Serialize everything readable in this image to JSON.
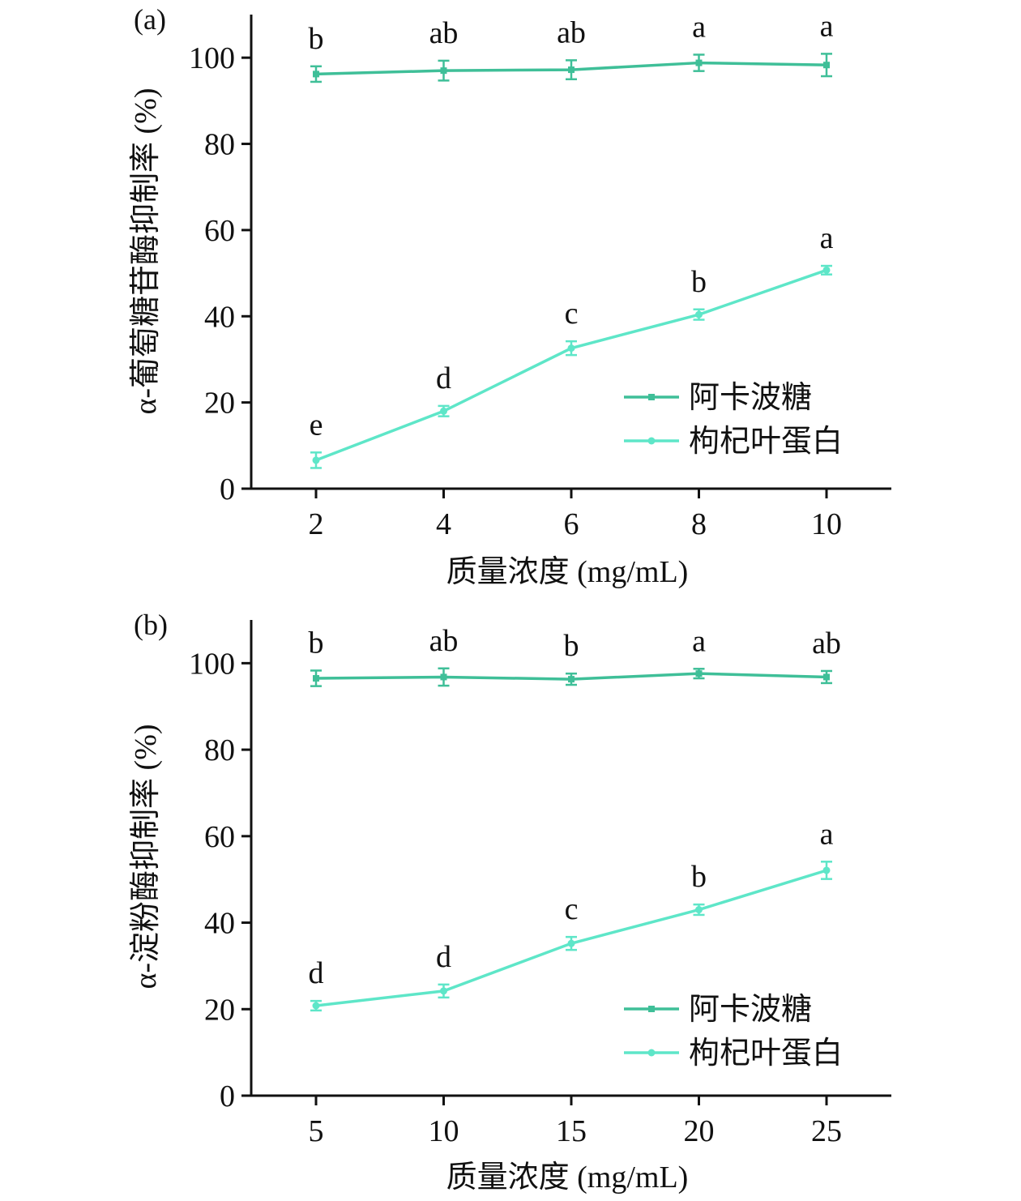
{
  "colors": {
    "acarbose": "#3fbf98",
    "protein": "#5ee6c8",
    "axis": "#111111"
  },
  "chart_data": [
    {
      "type": "line",
      "panel_label": "(a)",
      "xlabel": "质量浓度 (mg/mL)",
      "ylabel": "α-葡萄糖苷酶抑制率 (%)",
      "x": [
        2,
        4,
        6,
        8,
        10
      ],
      "x_ticks": [
        "2",
        "4",
        "6",
        "8",
        "10"
      ],
      "xlim": [
        1,
        11
      ],
      "ylim": [
        0,
        110
      ],
      "y_ticks": [
        "0",
        "20",
        "40",
        "60",
        "80",
        "100"
      ],
      "series": [
        {
          "name": "阿卡波糖",
          "marker": "square",
          "values": [
            96.2,
            97.0,
            97.2,
            98.8,
            98.3
          ],
          "errors": [
            1.8,
            2.3,
            2.2,
            1.9,
            2.6
          ],
          "labels": [
            "b",
            "ab",
            "ab",
            "a",
            "a"
          ]
        },
        {
          "name": "枸杞叶蛋白",
          "marker": "circle",
          "values": [
            6.6,
            18.0,
            32.6,
            40.4,
            50.7
          ],
          "errors": [
            1.8,
            1.2,
            1.6,
            1.2,
            1.0
          ],
          "labels": [
            "e",
            "d",
            "c",
            "b",
            "a"
          ]
        }
      ]
    },
    {
      "type": "line",
      "panel_label": "(b)",
      "xlabel": "质量浓度 (mg/mL)",
      "ylabel": "α-淀粉酶抑制率 (%)",
      "x": [
        5,
        10,
        15,
        20,
        25
      ],
      "x_ticks": [
        "5",
        "10",
        "15",
        "20",
        "25"
      ],
      "xlim": [
        2.5,
        27.5
      ],
      "ylim": [
        0,
        110
      ],
      "y_ticks": [
        "0",
        "20",
        "40",
        "60",
        "80",
        "100"
      ],
      "series": [
        {
          "name": "阿卡波糖",
          "marker": "square",
          "values": [
            96.5,
            96.8,
            96.3,
            97.6,
            96.8
          ],
          "errors": [
            1.8,
            2.0,
            1.3,
            1.1,
            1.4
          ],
          "labels": [
            "b",
            "ab",
            "b",
            "a",
            "ab"
          ]
        },
        {
          "name": "枸杞叶蛋白",
          "marker": "circle",
          "values": [
            20.8,
            24.2,
            35.2,
            43.0,
            52.1
          ],
          "errors": [
            1.1,
            1.5,
            1.5,
            1.2,
            2.0
          ],
          "labels": [
            "d",
            "d",
            "c",
            "b",
            "a"
          ]
        }
      ]
    }
  ]
}
